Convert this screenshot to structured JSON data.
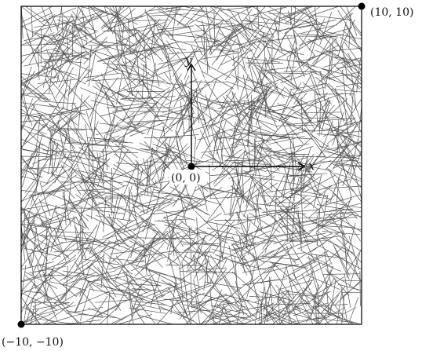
{
  "figure": {
    "domain_min": [
      -10,
      -10
    ],
    "domain_max": [
      10,
      10
    ],
    "fiber_count": 1800,
    "fiber_length": 2.2,
    "fiber_color": "#555555",
    "frame_color": "#000000"
  },
  "labels": {
    "top_right_corner": "(10, 10)",
    "bottom_left_corner": "(−10, −10)",
    "origin": "(0, 0)",
    "x_axis": "x",
    "y_axis": "y"
  }
}
